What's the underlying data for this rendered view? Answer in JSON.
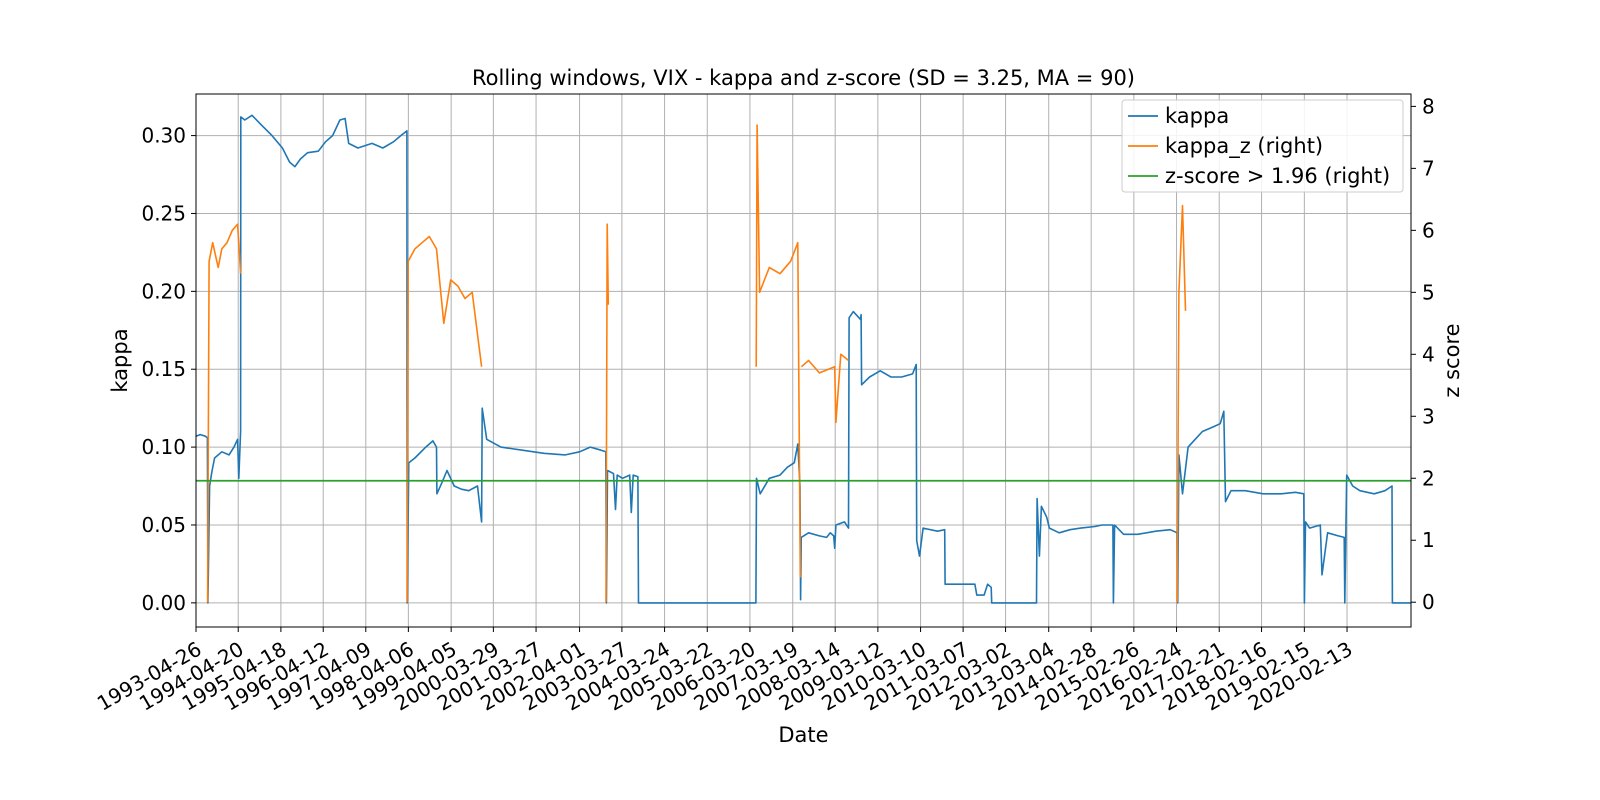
{
  "chart_data": {
    "type": "line",
    "title": "Rolling windows, VIX - kappa and z-score (SD = 3.25, MA = 90)",
    "xlabel": "Date",
    "ylabel": "kappa",
    "ylabel_right": "z score",
    "grid": true,
    "legend_position": "top-right",
    "xlim": [
      "1993-04-26",
      "2021-08-10"
    ],
    "ylim_left": [
      -0.0155,
      0.3267
    ],
    "ylim_right": [
      -0.4,
      8.2
    ],
    "x_ticks": [
      "1993-04-26",
      "1994-04-20",
      "1995-04-18",
      "1996-04-12",
      "1997-04-09",
      "1998-04-06",
      "1999-04-05",
      "2000-03-29",
      "2001-03-27",
      "2002-04-01",
      "2003-03-27",
      "2004-03-24",
      "2005-03-22",
      "2006-03-20",
      "2007-03-19",
      "2008-03-14",
      "2009-03-12",
      "2010-03-10",
      "2011-03-07",
      "2012-03-02",
      "2013-03-04",
      "2014-02-28",
      "2015-02-26",
      "2016-02-24",
      "2017-02-21",
      "2018-02-16",
      "2019-02-15",
      "2020-02-13"
    ],
    "y_ticks_left": [
      "0.00",
      "0.05",
      "0.10",
      "0.15",
      "0.20",
      "0.25",
      "0.30"
    ],
    "y_ticks_right": [
      "0",
      "1",
      "2",
      "3",
      "4",
      "5",
      "6",
      "7",
      "8"
    ],
    "series": [
      {
        "name": "kappa",
        "axis": "left",
        "color": "#1f77b4",
        "points": [
          [
            "1993-04-26",
            0.107
          ],
          [
            "1993-06-01",
            0.108
          ],
          [
            "1993-07-15",
            0.107
          ],
          [
            "1993-08-01",
            0.106
          ],
          [
            "1993-08-05",
            0.0
          ],
          [
            "1993-08-20",
            0.075
          ],
          [
            "1993-09-10",
            0.085
          ],
          [
            "1993-10-01",
            0.093
          ],
          [
            "1993-12-01",
            0.097
          ],
          [
            "1994-02-01",
            0.095
          ],
          [
            "1994-03-15",
            0.1
          ],
          [
            "1994-04-15",
            0.105
          ],
          [
            "1994-04-25",
            0.08
          ],
          [
            "1994-05-10",
            0.11
          ],
          [
            "1994-05-12",
            0.312
          ],
          [
            "1994-06-15",
            0.31
          ],
          [
            "1994-08-15",
            0.313
          ],
          [
            "1994-11-01",
            0.307
          ],
          [
            "1995-02-01",
            0.3
          ],
          [
            "1995-05-01",
            0.292
          ],
          [
            "1995-07-01",
            0.283
          ],
          [
            "1995-08-15",
            0.28
          ],
          [
            "1995-10-01",
            0.285
          ],
          [
            "1995-12-01",
            0.289
          ],
          [
            "1996-03-01",
            0.29
          ],
          [
            "1996-05-01",
            0.296
          ],
          [
            "1996-07-01",
            0.3
          ],
          [
            "1996-09-01",
            0.31
          ],
          [
            "1996-10-15",
            0.311
          ],
          [
            "1996-11-15",
            0.295
          ],
          [
            "1997-02-01",
            0.292
          ],
          [
            "1997-06-01",
            0.295
          ],
          [
            "1997-09-01",
            0.292
          ],
          [
            "1997-12-01",
            0.296
          ],
          [
            "1998-02-01",
            0.3
          ],
          [
            "1998-03-25",
            0.303
          ],
          [
            "1998-03-27",
            0.0
          ],
          [
            "1998-04-10",
            0.09
          ],
          [
            "1998-06-01",
            0.093
          ],
          [
            "1998-09-01",
            0.1
          ],
          [
            "1998-11-01",
            0.104
          ],
          [
            "1998-12-01",
            0.1
          ],
          [
            "1998-12-05",
            0.07
          ],
          [
            "1999-01-15",
            0.077
          ],
          [
            "1999-03-01",
            0.085
          ],
          [
            "1999-05-01",
            0.075
          ],
          [
            "1999-07-01",
            0.073
          ],
          [
            "1999-09-01",
            0.072
          ],
          [
            "1999-11-15",
            0.075
          ],
          [
            "1999-12-20",
            0.052
          ],
          [
            "1999-12-25",
            0.125
          ],
          [
            "2000-02-01",
            0.105
          ],
          [
            "2000-06-01",
            0.1
          ],
          [
            "2000-12-01",
            0.098
          ],
          [
            "2001-06-01",
            0.096
          ],
          [
            "2001-12-01",
            0.095
          ],
          [
            "2002-04-01",
            0.097
          ],
          [
            "2002-07-01",
            0.1
          ],
          [
            "2002-10-01",
            0.098
          ],
          [
            "2002-11-10",
            0.097
          ],
          [
            "2002-11-15",
            0.0
          ],
          [
            "2002-11-25",
            0.085
          ],
          [
            "2003-01-15",
            0.083
          ],
          [
            "2003-02-01",
            0.06
          ],
          [
            "2003-02-15",
            0.082
          ],
          [
            "2003-04-01",
            0.08
          ],
          [
            "2003-06-01",
            0.082
          ],
          [
            "2003-06-15",
            0.058
          ],
          [
            "2003-07-01",
            0.082
          ],
          [
            "2003-08-10",
            0.081
          ],
          [
            "2003-08-15",
            0.0
          ],
          [
            "2004-06-01",
            0.0
          ],
          [
            "2005-06-01",
            0.0
          ],
          [
            "2006-05-10",
            0.0
          ],
          [
            "2006-05-15",
            0.08
          ],
          [
            "2006-06-15",
            0.07
          ],
          [
            "2006-09-01",
            0.08
          ],
          [
            "2006-12-01",
            0.082
          ],
          [
            "2007-02-01",
            0.087
          ],
          [
            "2007-04-01",
            0.09
          ],
          [
            "2007-05-01",
            0.102
          ],
          [
            "2007-05-20",
            0.075
          ],
          [
            "2007-05-25",
            0.002
          ],
          [
            "2007-05-30",
            0.042
          ],
          [
            "2007-08-01",
            0.045
          ],
          [
            "2007-11-01",
            0.043
          ],
          [
            "2008-01-01",
            0.042
          ],
          [
            "2008-02-01",
            0.045
          ],
          [
            "2008-03-01",
            0.043
          ],
          [
            "2008-03-10",
            0.035
          ],
          [
            "2008-03-20",
            0.05
          ],
          [
            "2008-06-01",
            0.052
          ],
          [
            "2008-07-05",
            0.048
          ],
          [
            "2008-07-10",
            0.183
          ],
          [
            "2008-08-15",
            0.187
          ],
          [
            "2008-10-15",
            0.182
          ],
          [
            "2008-10-20",
            0.185
          ],
          [
            "2008-10-25",
            0.14
          ],
          [
            "2009-01-01",
            0.145
          ],
          [
            "2009-04-01",
            0.149
          ],
          [
            "2009-07-01",
            0.145
          ],
          [
            "2009-10-01",
            0.145
          ],
          [
            "2010-01-01",
            0.147
          ],
          [
            "2010-02-01",
            0.153
          ],
          [
            "2010-02-05",
            0.04
          ],
          [
            "2010-03-01",
            0.03
          ],
          [
            "2010-04-01",
            0.048
          ],
          [
            "2010-08-01",
            0.046
          ],
          [
            "2010-10-01",
            0.047
          ],
          [
            "2010-10-05",
            0.012
          ],
          [
            "2011-03-01",
            0.012
          ],
          [
            "2011-06-15",
            0.012
          ],
          [
            "2011-07-01",
            0.005
          ],
          [
            "2011-09-01",
            0.005
          ],
          [
            "2011-10-01",
            0.012
          ],
          [
            "2011-11-01",
            0.01
          ],
          [
            "2011-11-05",
            0.0
          ],
          [
            "2012-06-01",
            0.0
          ],
          [
            "2012-11-20",
            0.0
          ],
          [
            "2012-11-25",
            0.067
          ],
          [
            "2012-12-15",
            0.03
          ],
          [
            "2013-01-01",
            0.062
          ],
          [
            "2013-02-15",
            0.055
          ],
          [
            "2013-03-10",
            0.048
          ],
          [
            "2013-06-01",
            0.045
          ],
          [
            "2013-09-01",
            0.047
          ],
          [
            "2013-12-01",
            0.048
          ],
          [
            "2014-04-01",
            0.049
          ],
          [
            "2014-06-01",
            0.05
          ],
          [
            "2014-09-01",
            0.05
          ],
          [
            "2014-09-05",
            0.0
          ],
          [
            "2014-09-15",
            0.05
          ],
          [
            "2014-12-01",
            0.044
          ],
          [
            "2015-04-01",
            0.044
          ],
          [
            "2015-09-01",
            0.046
          ],
          [
            "2016-01-01",
            0.047
          ],
          [
            "2016-03-01",
            0.045
          ],
          [
            "2016-03-05",
            0.0
          ],
          [
            "2016-03-15",
            0.095
          ],
          [
            "2016-04-15",
            0.07
          ],
          [
            "2016-06-01",
            0.1
          ],
          [
            "2016-08-01",
            0.105
          ],
          [
            "2016-10-01",
            0.11
          ],
          [
            "2017-01-01",
            0.113
          ],
          [
            "2017-03-01",
            0.115
          ],
          [
            "2017-04-01",
            0.123
          ],
          [
            "2017-04-15",
            0.065
          ],
          [
            "2017-06-01",
            0.072
          ],
          [
            "2017-10-01",
            0.072
          ],
          [
            "2018-03-01",
            0.07
          ],
          [
            "2018-08-01",
            0.07
          ],
          [
            "2018-12-01",
            0.071
          ],
          [
            "2019-02-10",
            0.07
          ],
          [
            "2019-02-15",
            0.0
          ],
          [
            "2019-02-25",
            0.052
          ],
          [
            "2019-04-01",
            0.048
          ],
          [
            "2019-07-01",
            0.05
          ],
          [
            "2019-07-15",
            0.018
          ],
          [
            "2019-09-01",
            0.045
          ],
          [
            "2019-12-01",
            0.043
          ],
          [
            "2020-01-20",
            0.042
          ],
          [
            "2020-01-25",
            0.0
          ],
          [
            "2020-02-10",
            0.082
          ],
          [
            "2020-04-01",
            0.075
          ],
          [
            "2020-06-01",
            0.072
          ],
          [
            "2020-10-01",
            0.07
          ],
          [
            "2021-01-01",
            0.072
          ],
          [
            "2021-03-01",
            0.075
          ],
          [
            "2021-03-05",
            0.0
          ],
          [
            "2021-08-10",
            0.0
          ]
        ]
      },
      {
        "name": "kappa_z (right)",
        "axis": "right",
        "color": "#ff7f0e",
        "segments": [
          [
            [
              "1993-08-03",
              0.0
            ],
            [
              "1993-08-15",
              5.5
            ],
            [
              "1993-09-15",
              5.8
            ],
            [
              "1993-11-01",
              5.4
            ],
            [
              "1993-12-01",
              5.7
            ],
            [
              "1994-01-15",
              5.8
            ],
            [
              "1994-03-01",
              6.0
            ],
            [
              "1994-04-15",
              6.1
            ],
            [
              "1994-05-10",
              5.3
            ]
          ],
          [
            [
              "1998-03-26",
              0.0
            ],
            [
              "1998-04-05",
              5.5
            ],
            [
              "1998-06-01",
              5.7
            ],
            [
              "1998-08-01",
              5.8
            ],
            [
              "1998-10-01",
              5.9
            ],
            [
              "1998-12-01",
              5.7
            ],
            [
              "1999-02-01",
              4.5
            ],
            [
              "1999-04-01",
              5.2
            ],
            [
              "1999-06-01",
              5.1
            ],
            [
              "1999-08-01",
              4.9
            ],
            [
              "1999-10-01",
              5.0
            ],
            [
              "1999-12-20",
              3.8
            ]
          ],
          [
            [
              "2002-11-12",
              0.0
            ],
            [
              "2002-11-22",
              6.1
            ],
            [
              "2002-12-01",
              4.8
            ]
          ],
          [
            [
              "2006-05-12",
              3.8
            ],
            [
              "2006-05-20",
              7.7
            ],
            [
              "2006-06-10",
              5.0
            ],
            [
              "2006-09-01",
              5.4
            ],
            [
              "2006-12-01",
              5.3
            ],
            [
              "2007-03-01",
              5.5
            ],
            [
              "2007-05-01",
              5.8
            ],
            [
              "2007-05-22",
              0.4
            ]
          ],
          [
            [
              "2007-06-01",
              3.8
            ],
            [
              "2007-08-01",
              3.9
            ],
            [
              "2007-11-01",
              3.7
            ],
            [
              "2008-03-10",
              3.8
            ],
            [
              "2008-03-20",
              2.9
            ],
            [
              "2008-05-01",
              4.0
            ],
            [
              "2008-07-06",
              3.9
            ]
          ],
          [
            [
              "2016-03-01",
              0.0
            ],
            [
              "2016-03-15",
              5.0
            ],
            [
              "2016-04-15",
              6.4
            ],
            [
              "2016-05-10",
              4.7
            ]
          ]
        ]
      },
      {
        "name": "z-score > 1.96 (right)",
        "axis": "right",
        "color": "#2ca02c",
        "y": 1.96
      }
    ]
  }
}
